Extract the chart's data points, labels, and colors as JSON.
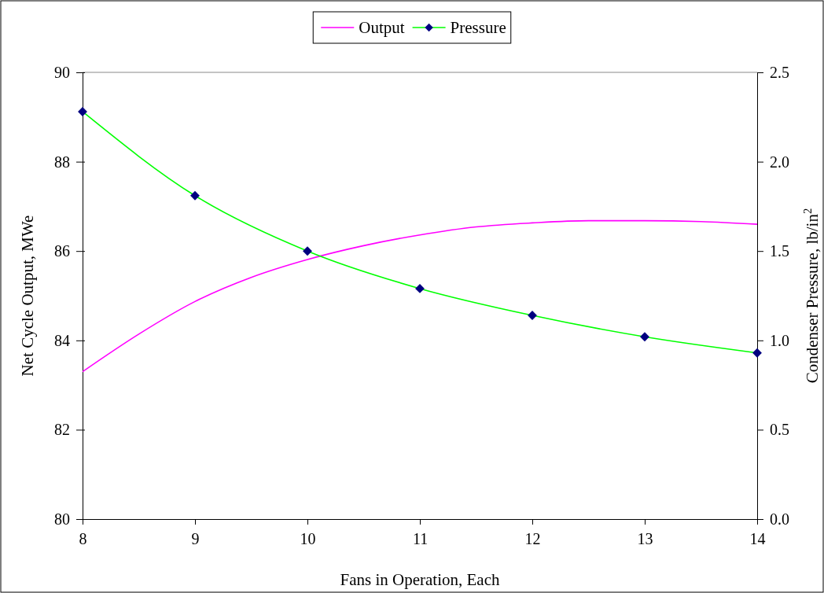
{
  "chart_data": {
    "type": "line",
    "xlabel": "Fans in Operation, Each",
    "ylabel": "Net Cycle Output, MWe",
    "y2label": "Condenser Pressure, lb/in$^{2}$",
    "xlim": [
      8,
      14
    ],
    "xticks": [
      8,
      9,
      10,
      11,
      12,
      13,
      14
    ],
    "ylim": [
      80,
      90
    ],
    "yticks": [
      80,
      82,
      84,
      86,
      88,
      90
    ],
    "y2lim": [
      0,
      2.5
    ],
    "y2ticks": [
      {
        "value": 0,
        "label": "0.0"
      },
      {
        "value": 0.5,
        "label": "0.5"
      },
      {
        "value": 1,
        "label": "1.0"
      },
      {
        "value": 1.5,
        "label": "1.5"
      },
      {
        "value": 2,
        "label": "2.0"
      },
      {
        "value": 2.5,
        "label": "2.5"
      }
    ],
    "legend": "top",
    "grid": false,
    "line_style": "solid",
    "series": [
      {
        "name": "Output",
        "color": "#ff00ff",
        "marker": "none",
        "x": [
          8,
          8.5,
          9,
          9.5,
          10,
          10.5,
          11,
          11.5,
          12,
          12.5,
          13,
          13.5,
          14
        ],
        "values": [
          83.3,
          84.14,
          84.87,
          85.41,
          85.81,
          86.12,
          86.36,
          86.54,
          86.63,
          86.68,
          86.68,
          86.66,
          86.6
        ]
      },
      {
        "name": "Pressure",
        "color": "#00ff00",
        "marker": "diamond",
        "axis": "y2",
        "x": [
          8,
          9,
          10,
          11,
          12,
          13,
          14
        ],
        "values": [
          2.28,
          1.81,
          1.5,
          1.29,
          1.14,
          1.02,
          0.93
        ]
      }
    ]
  }
}
